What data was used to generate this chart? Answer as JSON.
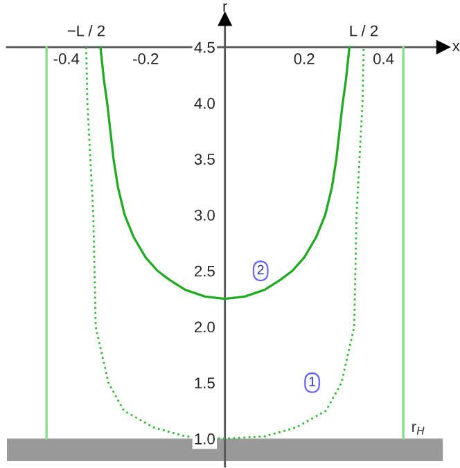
{
  "chart_data": {
    "type": "line",
    "xlabel": "x",
    "ylabel": "r",
    "xlim": [
      -0.55,
      0.55
    ],
    "ylim": [
      0.75,
      4.75
    ],
    "xticks": [
      {
        "value": -0.4,
        "label": "-0.4"
      },
      {
        "value": -0.2,
        "label": "-0.2"
      },
      0.2,
      0.4
    ],
    "yticks": [
      {
        "value": 1,
        "label": "1.0"
      },
      {
        "value": 1.5,
        "label": "1.5"
      },
      {
        "value": 2,
        "label": "2.0"
      },
      {
        "value": 2.5,
        "label": "2.5"
      },
      {
        "value": 3,
        "label": "3.0"
      },
      {
        "value": 3.5,
        "label": "3.5"
      },
      {
        "value": 4,
        "label": "4.0"
      },
      {
        "value": 4.5,
        "label": "4.5"
      }
    ],
    "grid": false,
    "legend": false,
    "marker": "none",
    "series": [
      {
        "color": "#22aa22",
        "line_style": "solid",
        "x": [
          -0.314,
          -0.305,
          -0.297,
          -0.281,
          -0.27,
          -0.253,
          -0.23,
          -0.2,
          -0.17,
          -0.14,
          -0.1,
          -0.05,
          0,
          0.05,
          0.1,
          0.14,
          0.17,
          0.2,
          0.23,
          0.253,
          0.27,
          0.281,
          0.297,
          0.305,
          0.314
        ],
        "values": [
          4.5,
          4.2,
          4.0,
          3.5,
          3.25,
          3.0,
          2.8,
          2.62,
          2.5,
          2.42,
          2.33,
          2.27,
          2.25,
          2.27,
          2.33,
          2.42,
          2.5,
          2.62,
          2.8,
          3.0,
          3.25,
          3.5,
          4.0,
          4.2,
          4.5
        ]
      },
      {
        "color": "#33bb33",
        "line_style": "dotted",
        "x": [
          -0.35,
          -0.347,
          -0.332,
          -0.326,
          -0.294,
          -0.255,
          -0.18,
          -0.1,
          0,
          0.1,
          0.18,
          0.255,
          0.294,
          0.326,
          0.332,
          0.347,
          0.35
        ],
        "values": [
          4.5,
          4.0,
          3.0,
          2.0,
          1.5,
          1.25,
          1.1,
          1.02,
          1.0,
          1.02,
          1.1,
          1.25,
          1.5,
          2.0,
          3.0,
          4.0,
          4.5
        ]
      },
      {
        "color": "#88dd88",
        "line_style": "solid",
        "x": [
          -0.45,
          -0.45
        ],
        "values": [
          1.0,
          4.5
        ]
      },
      {
        "color": "#88dd88",
        "line_style": "solid",
        "x": [
          0.45,
          0.45
        ],
        "values": [
          1.0,
          4.5
        ]
      }
    ],
    "bands": [
      {
        "axis": "y",
        "from": 0.8,
        "to": 1.0,
        "label": "r$_{H}$",
        "color": "#999999"
      }
    ],
    "annotations": [
      {
        "text": "2",
        "x": 0.09,
        "y": 2.5
      },
      {
        "text": "1",
        "x": 0.22,
        "y": 1.5
      },
      {
        "text": "−L / 2",
        "x": -0.35,
        "y": 4.5
      },
      {
        "text": "L / 2",
        "x": 0.35,
        "y": 4.5
      }
    ]
  }
}
